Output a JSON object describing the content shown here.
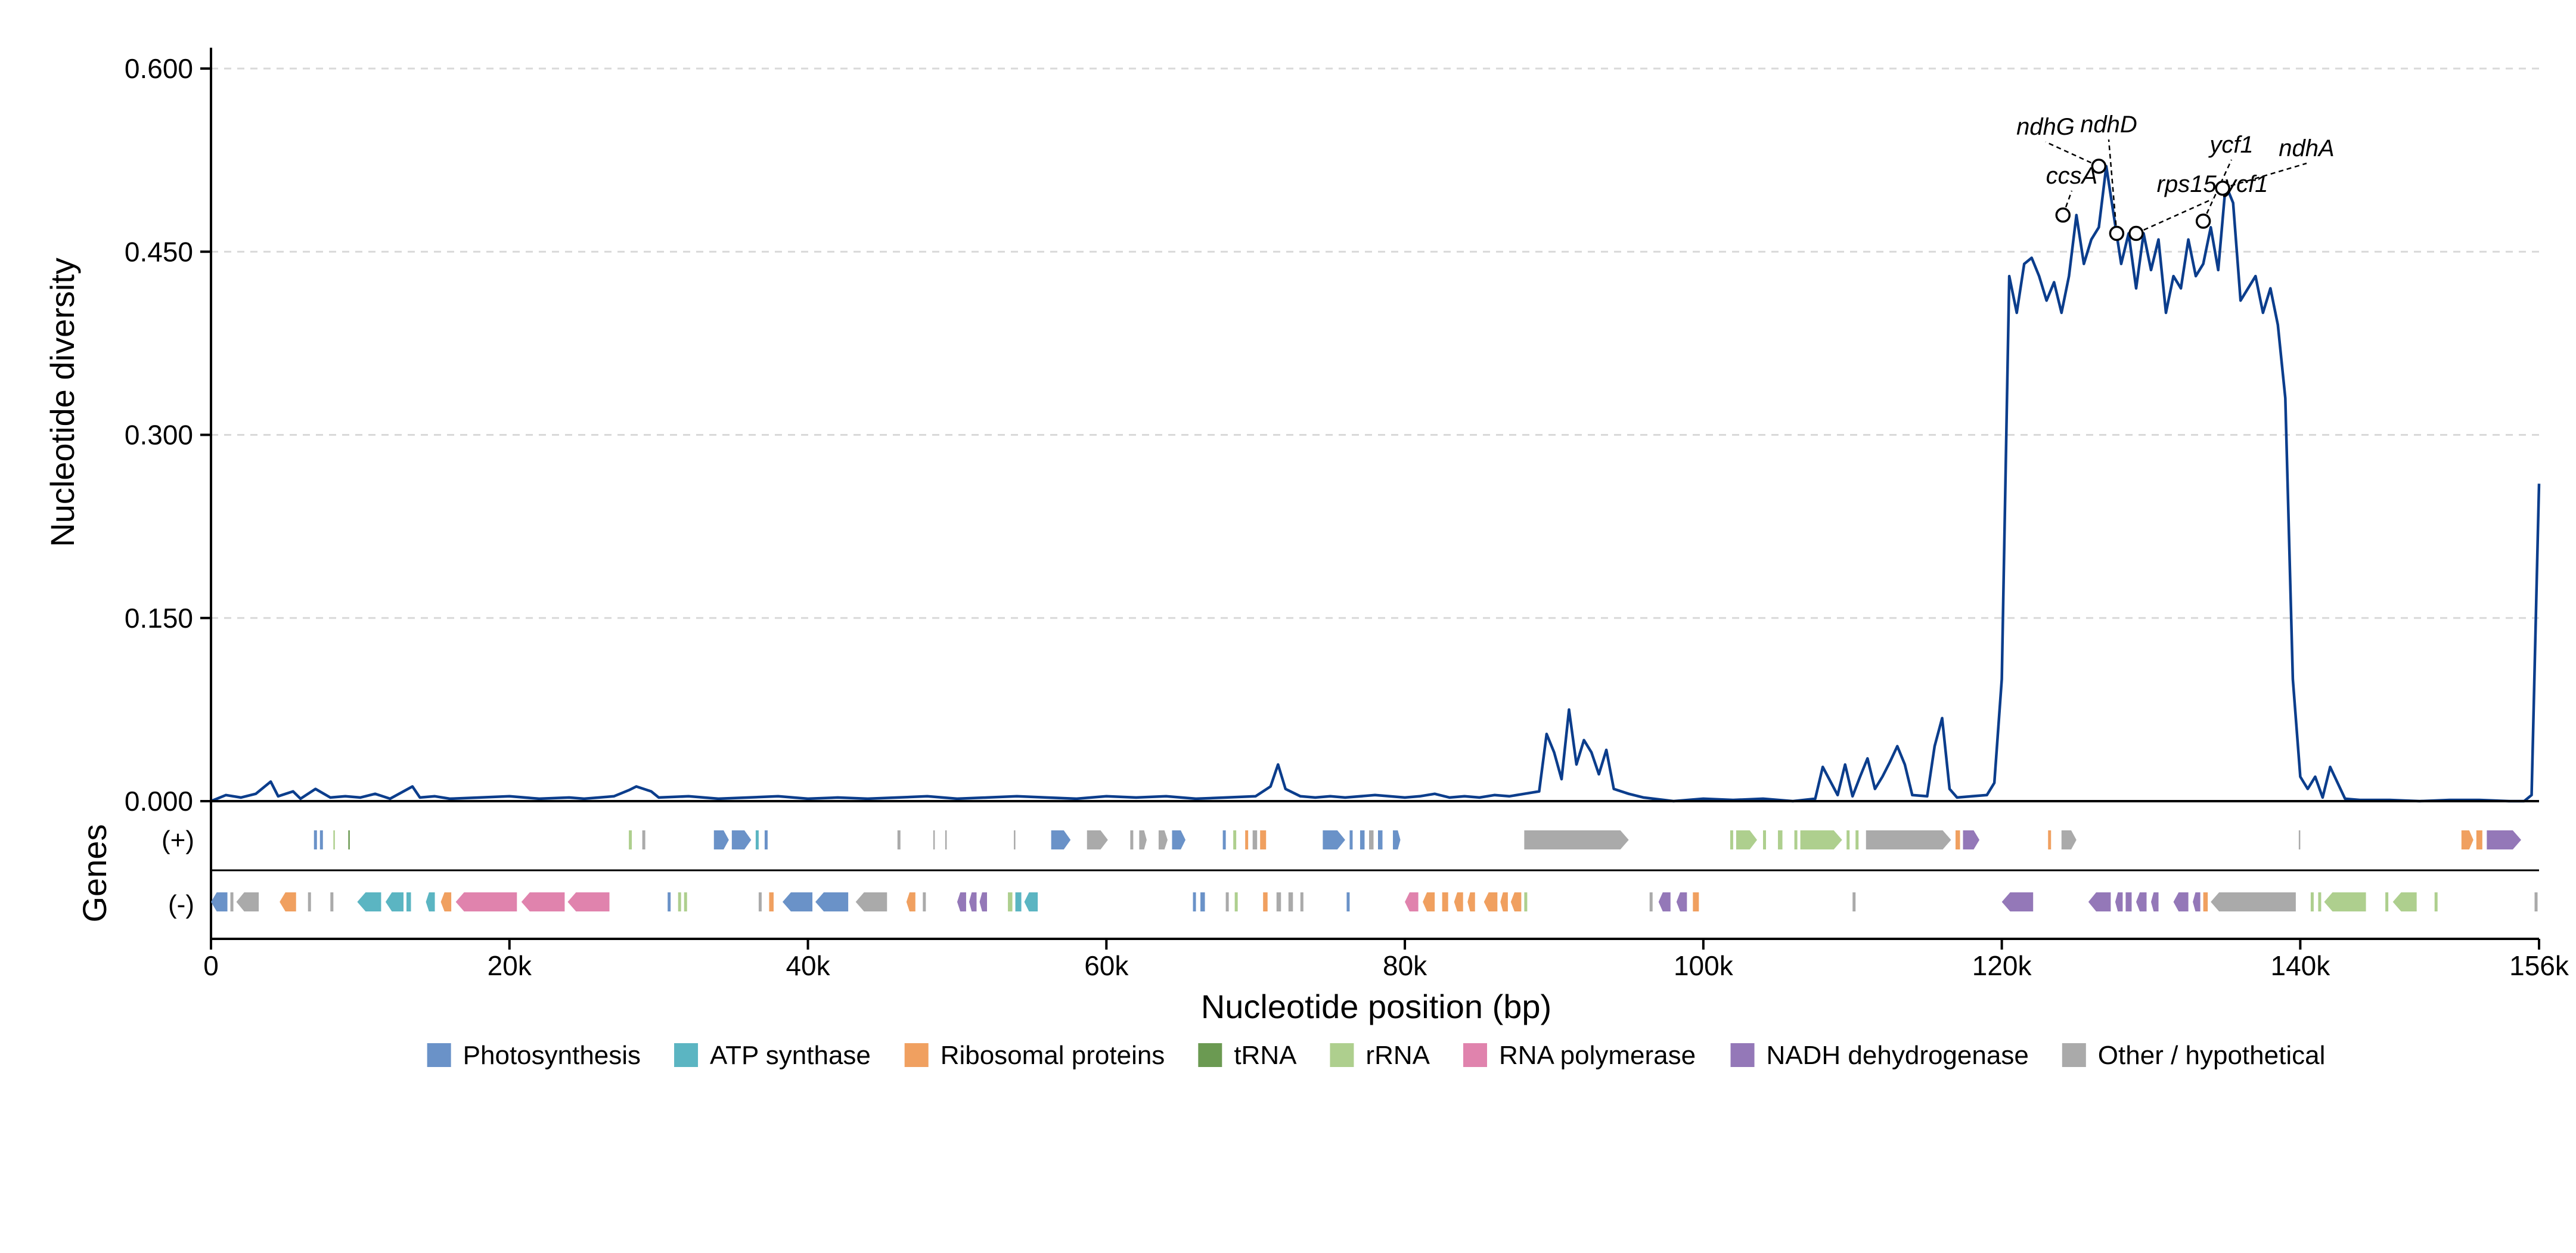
{
  "chart_data": {
    "type": "line",
    "xlabel": "Nucleotide position (bp)",
    "ylabel": "Nucleotide diversity",
    "gene_track_label": "Genes",
    "strand_labels": [
      "(+)",
      "(-)"
    ],
    "xlim": [
      0,
      156000
    ],
    "ylim": [
      0,
      0.6
    ],
    "x_ticks": [
      0,
      20000,
      40000,
      60000,
      80000,
      100000,
      120000,
      140000,
      156000
    ],
    "x_tick_labels": [
      "0",
      "20k",
      "40k",
      "60k",
      "80k",
      "100k",
      "120k",
      "140k",
      "156k"
    ],
    "y_ticks": [
      0,
      0.15,
      0.3,
      0.45,
      0.6
    ],
    "y_tick_labels": [
      "0.000",
      "0.150",
      "0.300",
      "0.450",
      "0.600"
    ],
    "grid": "horizontal-dashed",
    "line_color": "#0b3d8c",
    "series": [
      {
        "x": [
          0,
          1000,
          2000,
          3000,
          4000,
          4500,
          5500,
          6000,
          7000,
          8000,
          9000,
          10000,
          11000,
          12000,
          13500,
          14000,
          15000,
          16000,
          18000,
          20000,
          22000,
          24000,
          25000,
          26000,
          27000,
          28000,
          28500,
          29500,
          30000,
          32000,
          34000,
          36000,
          38000,
          40000,
          42000,
          44000,
          46000,
          48000,
          50000,
          52000,
          54000,
          56000,
          58000,
          60000,
          62000,
          64000,
          66000,
          68000,
          70000,
          71000,
          71500,
          72000,
          73000,
          74000,
          75000,
          76000,
          78000,
          80000,
          81000,
          82000,
          83000,
          84000,
          85000,
          86000,
          87000,
          88000,
          89000,
          89500,
          90000,
          90500,
          91000,
          91500,
          92000,
          92500,
          93000,
          93500,
          94000,
          95000,
          96000,
          98000,
          100000,
          102000,
          104000,
          106000,
          107500,
          108000,
          109000,
          109500,
          110000,
          110500,
          111000,
          111500,
          112000,
          112500,
          113000,
          113500,
          114000,
          115000,
          115500,
          116000,
          116500,
          117000,
          118000,
          119000,
          119500,
          120000,
          120500,
          121000,
          121500,
          122000,
          122500,
          123000,
          123500,
          124000,
          124500,
          125000,
          125500,
          126000,
          126500,
          127000,
          127500,
          128000,
          128500,
          129000,
          129500,
          130000,
          130500,
          131000,
          131500,
          132000,
          132500,
          133000,
          133500,
          134000,
          134500,
          135000,
          135500,
          136000,
          136500,
          137000,
          137500,
          138000,
          138500,
          139000,
          139500,
          140000,
          140500,
          141000,
          141500,
          142000,
          143000,
          144000,
          146000,
          148000,
          150000,
          152000,
          154000,
          155000,
          155500,
          156000
        ],
        "y": [
          0.0,
          0.005,
          0.003,
          0.006,
          0.016,
          0.004,
          0.008,
          0.002,
          0.01,
          0.003,
          0.004,
          0.003,
          0.006,
          0.002,
          0.012,
          0.003,
          0.004,
          0.002,
          0.003,
          0.004,
          0.002,
          0.003,
          0.002,
          0.003,
          0.004,
          0.009,
          0.012,
          0.008,
          0.003,
          0.004,
          0.002,
          0.003,
          0.004,
          0.002,
          0.003,
          0.002,
          0.003,
          0.004,
          0.002,
          0.003,
          0.004,
          0.003,
          0.002,
          0.004,
          0.003,
          0.004,
          0.002,
          0.003,
          0.004,
          0.012,
          0.03,
          0.01,
          0.004,
          0.003,
          0.004,
          0.003,
          0.005,
          0.003,
          0.004,
          0.006,
          0.003,
          0.004,
          0.003,
          0.005,
          0.004,
          0.006,
          0.008,
          0.055,
          0.04,
          0.018,
          0.075,
          0.03,
          0.05,
          0.04,
          0.022,
          0.042,
          0.01,
          0.006,
          0.003,
          0.0,
          0.002,
          0.001,
          0.002,
          0.0,
          0.002,
          0.028,
          0.005,
          0.03,
          0.004,
          0.02,
          0.035,
          0.01,
          0.02,
          0.032,
          0.045,
          0.03,
          0.005,
          0.004,
          0.045,
          0.068,
          0.01,
          0.003,
          0.004,
          0.005,
          0.015,
          0.1,
          0.43,
          0.4,
          0.44,
          0.445,
          0.43,
          0.41,
          0.425,
          0.4,
          0.43,
          0.48,
          0.44,
          0.46,
          0.47,
          0.52,
          0.48,
          0.44,
          0.465,
          0.42,
          0.465,
          0.435,
          0.46,
          0.4,
          0.43,
          0.42,
          0.46,
          0.43,
          0.44,
          0.47,
          0.435,
          0.505,
          0.49,
          0.41,
          0.42,
          0.43,
          0.4,
          0.42,
          0.39,
          0.33,
          0.1,
          0.02,
          0.01,
          0.02,
          0.003,
          0.028,
          0.002,
          0.001,
          0.001,
          0.0,
          0.001,
          0.001,
          0.0,
          0.0,
          0.005,
          0.26
        ]
      }
    ],
    "peaks": [
      {
        "gene": "ccsA",
        "x": 124100,
        "y": 0.48
      },
      {
        "gene": "ndhG",
        "x": 126500,
        "y": 0.52
      },
      {
        "gene": "ndhD",
        "x": 127700,
        "y": 0.465
      },
      {
        "gene": "rps15-ycf1",
        "x": 129000,
        "y": 0.465
      },
      {
        "gene": "ycf1",
        "x": 133500,
        "y": 0.475
      },
      {
        "gene": "ndhA",
        "x": 134800,
        "y": 0.502
      }
    ],
    "legend_placement": "bottom",
    "legend": [
      {
        "name": "Photosynthesis",
        "color": "#6a92c8"
      },
      {
        "name": "ATP synthase",
        "color": "#5bb5c2"
      },
      {
        "name": "Ribosomal proteins",
        "color": "#f0a060"
      },
      {
        "name": "tRNA",
        "color": "#6b9a52"
      },
      {
        "name": "rRNA",
        "color": "#aecf8e"
      },
      {
        "name": "RNA polymerase",
        "color": "#e083ad"
      },
      {
        "name": "NADH dehydrogenase",
        "color": "#9478b8"
      },
      {
        "name": "Other / hypothetical",
        "color": "#aaaaaa"
      }
    ],
    "genes_plus": [
      {
        "start": 6900,
        "end": 7100,
        "cat": 0
      },
      {
        "start": 7300,
        "end": 7500,
        "cat": 0
      },
      {
        "start": 8200,
        "end": 8300,
        "cat": 4
      },
      {
        "start": 9200,
        "end": 9300,
        "cat": 3
      },
      {
        "start": 28000,
        "end": 28200,
        "cat": 4
      },
      {
        "start": 28900,
        "end": 29100,
        "cat": 7
      },
      {
        "start": 33700,
        "end": 34700,
        "cat": 0
      },
      {
        "start": 34900,
        "end": 36200,
        "cat": 0
      },
      {
        "start": 36500,
        "end": 36700,
        "cat": 1
      },
      {
        "start": 37100,
        "end": 37300,
        "cat": 0
      },
      {
        "start": 46000,
        "end": 46200,
        "cat": 7
      },
      {
        "start": 48400,
        "end": 48500,
        "cat": 7
      },
      {
        "start": 49200,
        "end": 49300,
        "cat": 7
      },
      {
        "start": 53800,
        "end": 53900,
        "cat": 7
      },
      {
        "start": 56300,
        "end": 57600,
        "cat": 0
      },
      {
        "start": 58700,
        "end": 60100,
        "cat": 7
      },
      {
        "start": 61600,
        "end": 61800,
        "cat": 7
      },
      {
        "start": 62200,
        "end": 62700,
        "cat": 7
      },
      {
        "start": 63500,
        "end": 64100,
        "cat": 7
      },
      {
        "start": 64400,
        "end": 65300,
        "cat": 0
      },
      {
        "start": 67800,
        "end": 68000,
        "cat": 0
      },
      {
        "start": 68500,
        "end": 68700,
        "cat": 4
      },
      {
        "start": 69300,
        "end": 69500,
        "cat": 2
      },
      {
        "start": 69800,
        "end": 70100,
        "cat": 7
      },
      {
        "start": 70300,
        "end": 70700,
        "cat": 2
      },
      {
        "start": 74500,
        "end": 76000,
        "cat": 0
      },
      {
        "start": 76300,
        "end": 76500,
        "cat": 0
      },
      {
        "start": 77000,
        "end": 77300,
        "cat": 0
      },
      {
        "start": 77600,
        "end": 77900,
        "cat": 7
      },
      {
        "start": 78200,
        "end": 78500,
        "cat": 0
      },
      {
        "start": 79200,
        "end": 79700,
        "cat": 0
      },
      {
        "start": 88000,
        "end": 95000,
        "cat": 7
      },
      {
        "start": 101800,
        "end": 102000,
        "cat": 4
      },
      {
        "start": 102200,
        "end": 103600,
        "cat": 4
      },
      {
        "start": 104000,
        "end": 104200,
        "cat": 4
      },
      {
        "start": 105000,
        "end": 105300,
        "cat": 4
      },
      {
        "start": 106100,
        "end": 106300,
        "cat": 4
      },
      {
        "start": 106500,
        "end": 109300,
        "cat": 4
      },
      {
        "start": 109600,
        "end": 109800,
        "cat": 4
      },
      {
        "start": 110200,
        "end": 110400,
        "cat": 4
      },
      {
        "start": 110900,
        "end": 116600,
        "cat": 7
      },
      {
        "start": 116900,
        "end": 117200,
        "cat": 2
      },
      {
        "start": 117400,
        "end": 118500,
        "cat": 6
      },
      {
        "start": 123100,
        "end": 123300,
        "cat": 2
      },
      {
        "start": 124000,
        "end": 125000,
        "cat": 7
      },
      {
        "start": 139900,
        "end": 140000,
        "cat": 7
      },
      {
        "start": 150800,
        "end": 151600,
        "cat": 2
      },
      {
        "start": 151800,
        "end": 152200,
        "cat": 2
      },
      {
        "start": 152500,
        "end": 154800,
        "cat": 6
      }
    ],
    "genes_minus": [
      {
        "start": 0,
        "end": 1100,
        "cat": 0
      },
      {
        "start": 1300,
        "end": 1500,
        "cat": 7
      },
      {
        "start": 1700,
        "end": 3200,
        "cat": 7
      },
      {
        "start": 4600,
        "end": 5700,
        "cat": 2
      },
      {
        "start": 6500,
        "end": 6700,
        "cat": 7
      },
      {
        "start": 8000,
        "end": 8200,
        "cat": 7
      },
      {
        "start": 9800,
        "end": 11400,
        "cat": 1
      },
      {
        "start": 11700,
        "end": 12900,
        "cat": 1
      },
      {
        "start": 13100,
        "end": 13400,
        "cat": 1
      },
      {
        "start": 14400,
        "end": 15000,
        "cat": 1
      },
      {
        "start": 15400,
        "end": 16100,
        "cat": 2
      },
      {
        "start": 16400,
        "end": 20500,
        "cat": 5
      },
      {
        "start": 20800,
        "end": 23700,
        "cat": 5
      },
      {
        "start": 23900,
        "end": 26700,
        "cat": 5
      },
      {
        "start": 30600,
        "end": 30800,
        "cat": 0
      },
      {
        "start": 31300,
        "end": 31500,
        "cat": 4
      },
      {
        "start": 31700,
        "end": 31900,
        "cat": 4
      },
      {
        "start": 36700,
        "end": 36900,
        "cat": 7
      },
      {
        "start": 37400,
        "end": 37700,
        "cat": 2
      },
      {
        "start": 38300,
        "end": 40300,
        "cat": 0
      },
      {
        "start": 40500,
        "end": 42700,
        "cat": 0
      },
      {
        "start": 43200,
        "end": 45300,
        "cat": 7
      },
      {
        "start": 46600,
        "end": 47200,
        "cat": 2
      },
      {
        "start": 47700,
        "end": 47900,
        "cat": 7
      },
      {
        "start": 50000,
        "end": 50600,
        "cat": 6
      },
      {
        "start": 50800,
        "end": 51300,
        "cat": 6
      },
      {
        "start": 51500,
        "end": 52000,
        "cat": 6
      },
      {
        "start": 53400,
        "end": 53700,
        "cat": 4
      },
      {
        "start": 53900,
        "end": 54300,
        "cat": 1
      },
      {
        "start": 54500,
        "end": 55400,
        "cat": 1
      },
      {
        "start": 65800,
        "end": 66000,
        "cat": 0
      },
      {
        "start": 66300,
        "end": 66600,
        "cat": 0
      },
      {
        "start": 68000,
        "end": 68200,
        "cat": 7
      },
      {
        "start": 68600,
        "end": 68800,
        "cat": 4
      },
      {
        "start": 70500,
        "end": 70800,
        "cat": 2
      },
      {
        "start": 71400,
        "end": 71700,
        "cat": 7
      },
      {
        "start": 72200,
        "end": 72500,
        "cat": 7
      },
      {
        "start": 73000,
        "end": 73200,
        "cat": 7
      },
      {
        "start": 76100,
        "end": 76300,
        "cat": 0
      },
      {
        "start": 80000,
        "end": 80900,
        "cat": 5
      },
      {
        "start": 81200,
        "end": 82000,
        "cat": 2
      },
      {
        "start": 82500,
        "end": 82900,
        "cat": 2
      },
      {
        "start": 83300,
        "end": 83900,
        "cat": 2
      },
      {
        "start": 84200,
        "end": 84700,
        "cat": 2
      },
      {
        "start": 85300,
        "end": 86200,
        "cat": 2
      },
      {
        "start": 86400,
        "end": 86900,
        "cat": 2
      },
      {
        "start": 87100,
        "end": 87800,
        "cat": 2
      },
      {
        "start": 88000,
        "end": 88200,
        "cat": 4
      },
      {
        "start": 96400,
        "end": 96600,
        "cat": 7
      },
      {
        "start": 97000,
        "end": 97800,
        "cat": 6
      },
      {
        "start": 98200,
        "end": 98900,
        "cat": 6
      },
      {
        "start": 99300,
        "end": 99700,
        "cat": 2
      },
      {
        "start": 110000,
        "end": 110200,
        "cat": 7
      },
      {
        "start": 120000,
        "end": 122100,
        "cat": 6
      },
      {
        "start": 125800,
        "end": 127300,
        "cat": 6
      },
      {
        "start": 127600,
        "end": 128100,
        "cat": 6
      },
      {
        "start": 128300,
        "end": 128700,
        "cat": 6
      },
      {
        "start": 129000,
        "end": 129700,
        "cat": 6
      },
      {
        "start": 130000,
        "end": 130500,
        "cat": 6
      },
      {
        "start": 131500,
        "end": 132500,
        "cat": 6
      },
      {
        "start": 132800,
        "end": 133300,
        "cat": 6
      },
      {
        "start": 133500,
        "end": 133800,
        "cat": 2
      },
      {
        "start": 134000,
        "end": 139700,
        "cat": 7
      },
      {
        "start": 140700,
        "end": 140900,
        "cat": 4
      },
      {
        "start": 141200,
        "end": 141400,
        "cat": 4
      },
      {
        "start": 141600,
        "end": 144400,
        "cat": 4
      },
      {
        "start": 145700,
        "end": 145900,
        "cat": 4
      },
      {
        "start": 146200,
        "end": 147800,
        "cat": 4
      },
      {
        "start": 149000,
        "end": 149200,
        "cat": 4
      },
      {
        "start": 155700,
        "end": 155900,
        "cat": 7
      }
    ]
  }
}
